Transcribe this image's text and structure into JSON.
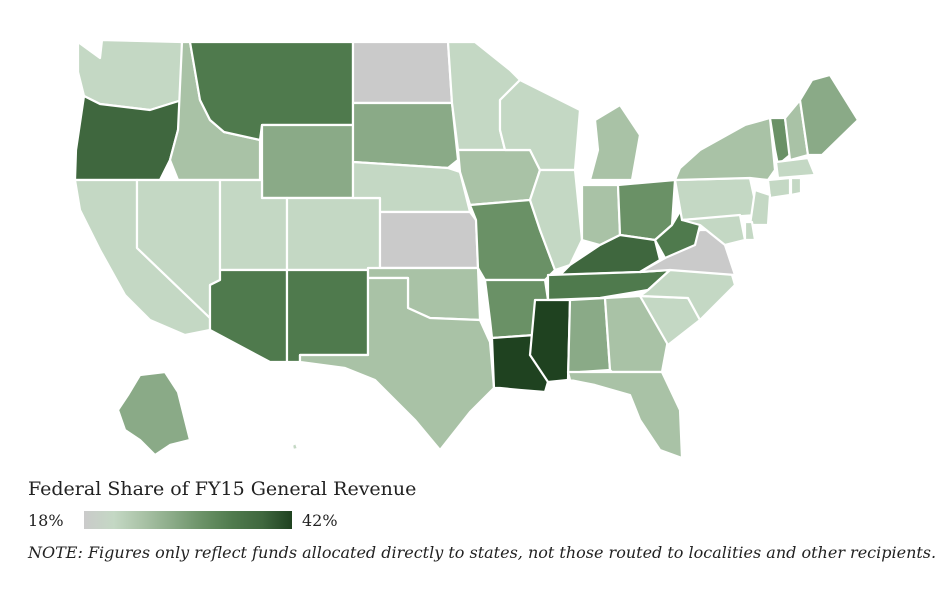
{
  "legend": {
    "title": "Federal Share of FY15 General Revenue",
    "min_label": "18%",
    "max_label": "42%",
    "min_value": 18,
    "max_value": 42,
    "colors": [
      "#cacaca",
      "#c4d8c4",
      "#a9c2a6",
      "#8aaa87",
      "#6a9166",
      "#4f7a4d",
      "#3f673e",
      "#1f4220"
    ]
  },
  "note": "NOTE: Figures only reflect funds allocated directly to states, not those routed to localities and other recipients.",
  "map": {
    "states": [
      {
        "id": "WA",
        "level": 1
      },
      {
        "id": "OR",
        "level": 6
      },
      {
        "id": "CA",
        "level": 1
      },
      {
        "id": "ID",
        "level": 2
      },
      {
        "id": "NV",
        "level": 1
      },
      {
        "id": "MT",
        "level": 5
      },
      {
        "id": "WY",
        "level": 3
      },
      {
        "id": "UT",
        "level": 1
      },
      {
        "id": "AZ",
        "level": 5
      },
      {
        "id": "CO",
        "level": 1
      },
      {
        "id": "NM",
        "level": 5
      },
      {
        "id": "ND",
        "level": 0
      },
      {
        "id": "SD",
        "level": 3
      },
      {
        "id": "NE",
        "level": 1
      },
      {
        "id": "KS",
        "level": 0
      },
      {
        "id": "OK",
        "level": 2
      },
      {
        "id": "TX",
        "level": 2
      },
      {
        "id": "MN",
        "level": 1
      },
      {
        "id": "IA",
        "level": 2
      },
      {
        "id": "MO",
        "level": 4
      },
      {
        "id": "AR",
        "level": 4
      },
      {
        "id": "LA",
        "level": 7
      },
      {
        "id": "WI",
        "level": 1
      },
      {
        "id": "IL",
        "level": 1
      },
      {
        "id": "MI",
        "level": 2
      },
      {
        "id": "IN",
        "level": 2
      },
      {
        "id": "OH",
        "level": 4
      },
      {
        "id": "KY",
        "level": 6
      },
      {
        "id": "TN",
        "level": 5
      },
      {
        "id": "MS",
        "level": 7
      },
      {
        "id": "AL",
        "level": 3
      },
      {
        "id": "GA",
        "level": 2
      },
      {
        "id": "FL",
        "level": 2
      },
      {
        "id": "SC",
        "level": 1
      },
      {
        "id": "NC",
        "level": 1
      },
      {
        "id": "VA",
        "level": 0
      },
      {
        "id": "WV",
        "level": 5
      },
      {
        "id": "PA",
        "level": 1
      },
      {
        "id": "NY",
        "level": 2
      },
      {
        "id": "VT",
        "level": 4
      },
      {
        "id": "NH",
        "level": 2
      },
      {
        "id": "ME",
        "level": 3
      },
      {
        "id": "MA",
        "level": 1
      },
      {
        "id": "CT",
        "level": 1
      },
      {
        "id": "RI",
        "level": 1
      },
      {
        "id": "NJ",
        "level": 1
      },
      {
        "id": "DE",
        "level": 1
      },
      {
        "id": "MD",
        "level": 1
      },
      {
        "id": "AK",
        "level": 3
      },
      {
        "id": "HI",
        "level": 1
      }
    ]
  }
}
